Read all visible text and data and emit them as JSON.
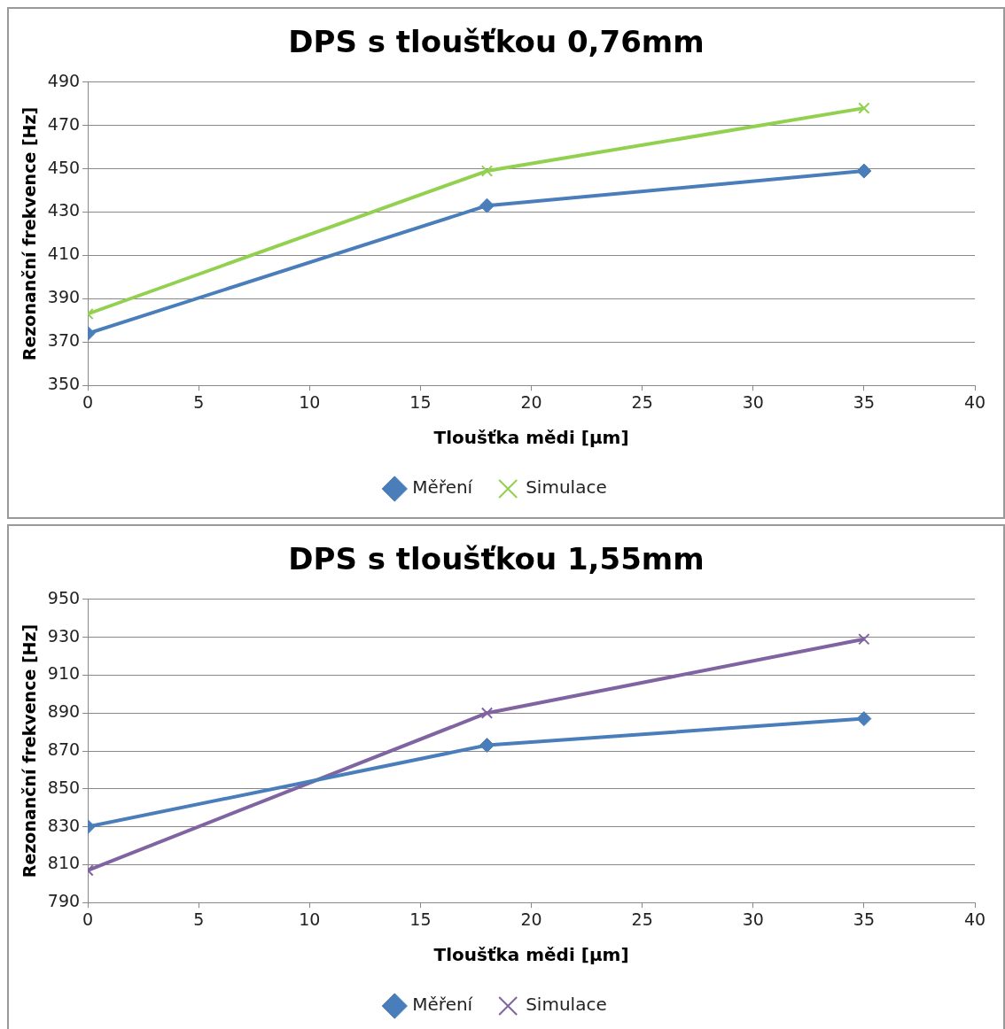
{
  "chart_data": [
    {
      "type": "line",
      "title": "DPS s tloušťkou 0,76mm",
      "xlabel": "Tloušťka mědi [µm]",
      "ylabel": "Rezonanční frekvence [Hz]",
      "x": [
        0,
        18,
        35
      ],
      "xlim": [
        0,
        40
      ],
      "xticks": [
        0,
        5,
        10,
        15,
        20,
        25,
        30,
        35,
        40
      ],
      "ylim": [
        350,
        490
      ],
      "yticks": [
        350,
        370,
        390,
        410,
        430,
        450,
        470,
        490
      ],
      "grid": "y",
      "legend": "bottom",
      "series": [
        {
          "name": "Měření",
          "color": "#4a7ebb",
          "marker": "diamond",
          "values": [
            374,
            433,
            449
          ]
        },
        {
          "name": "Simulace",
          "color": "#92d050",
          "marker": "cross",
          "values": [
            383,
            449,
            478
          ]
        }
      ]
    },
    {
      "type": "line",
      "title": "DPS s tloušťkou 1,55mm",
      "xlabel": "Tloušťka mědi [µm]",
      "ylabel": "Rezonanční frekvence [Hz]",
      "x": [
        0,
        18,
        35
      ],
      "xlim": [
        0,
        40
      ],
      "xticks": [
        0,
        5,
        10,
        15,
        20,
        25,
        30,
        35,
        40
      ],
      "ylim": [
        790,
        950
      ],
      "yticks": [
        790,
        810,
        830,
        850,
        870,
        890,
        910,
        930,
        950
      ],
      "grid": "y",
      "legend": "bottom",
      "series": [
        {
          "name": "Měření",
          "color": "#4a7ebb",
          "marker": "diamond",
          "values": [
            830,
            873,
            887
          ]
        },
        {
          "name": "Simulace",
          "color": "#8064a2",
          "marker": "cross",
          "values": [
            807,
            890,
            929
          ]
        }
      ]
    }
  ]
}
